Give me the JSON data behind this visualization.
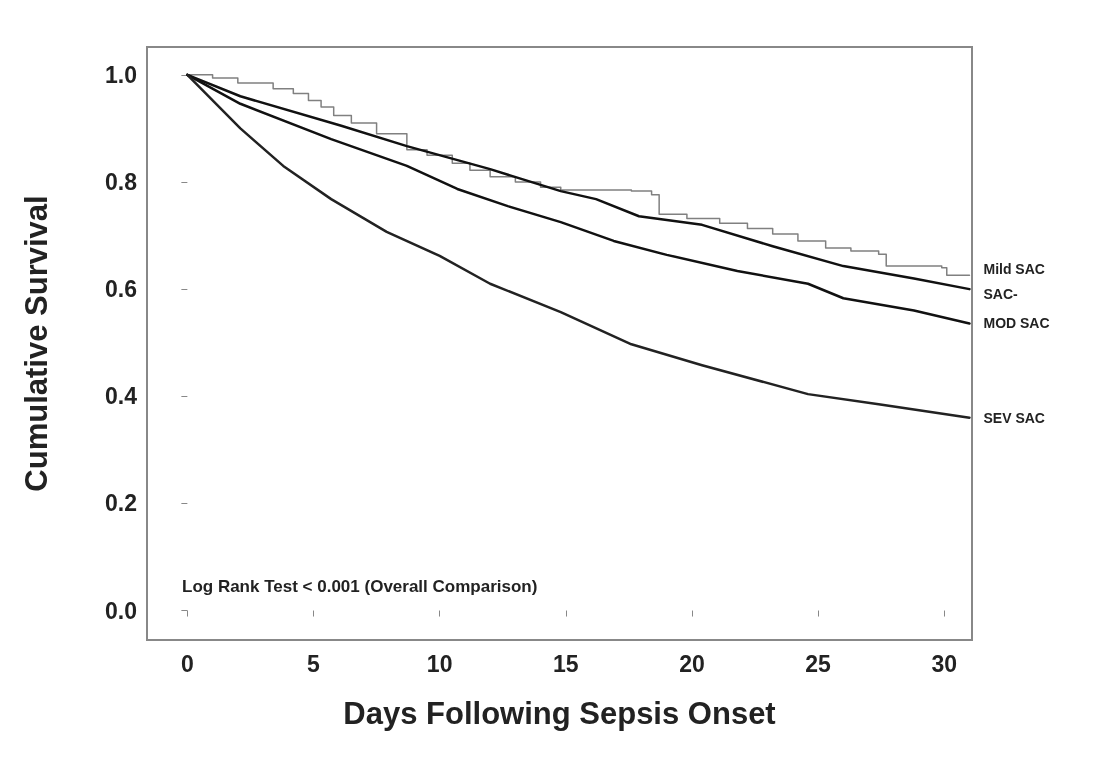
{
  "chart_data": {
    "type": "line",
    "xlabel": "Days Following Sepsis Onset",
    "ylabel": "Cumulative Survival",
    "xlim": [
      -1.6,
      31.1
    ],
    "ylim": [
      -0.055,
      1.052
    ],
    "xticks": [
      0,
      5,
      10,
      15,
      20,
      25,
      30
    ],
    "yticks": [
      {
        "value": 0,
        "label": "0.0"
      },
      0.2,
      0.4,
      0.6,
      0.8,
      {
        "value": 1,
        "label": "1.0"
      }
    ],
    "grid": false,
    "legend": false,
    "marker": "none",
    "line_style": "solid",
    "annotations": [
      "Log Rank Test < 0.001 (Overall Comparison)"
    ],
    "series": [
      {
        "name": "Mild SAC",
        "type": "step",
        "color": "#808080",
        "x": [
          0,
          1,
          2,
          3.4,
          4.2,
          4.8,
          5.3,
          5.8,
          6.5,
          7.5,
          8.7,
          9.5,
          10.5,
          11.2,
          12,
          13,
          14,
          14.8,
          17.6,
          18.4,
          18.7,
          19.8,
          21.1,
          22.2,
          23.2,
          24.2,
          25.3,
          26.3,
          27.4,
          27.7,
          29.9,
          30.1,
          31
        ],
        "values": [
          1,
          0.994,
          0.985,
          0.974,
          0.965,
          0.952,
          0.94,
          0.924,
          0.91,
          0.89,
          0.86,
          0.85,
          0.835,
          0.822,
          0.81,
          0.8,
          0.79,
          0.785,
          0.783,
          0.776,
          0.74,
          0.732,
          0.723,
          0.713,
          0.703,
          0.69,
          0.677,
          0.671,
          0.665,
          0.643,
          0.64,
          0.626,
          0.626
        ]
      },
      {
        "name": "SAC-",
        "color": "#111111",
        "x": [
          0,
          2.1,
          6.1,
          8.7,
          12,
          14.8,
          16.2,
          17.9,
          20.4,
          23.2,
          26,
          28.8,
          31
        ],
        "values": [
          1,
          0.96,
          0.905,
          0.867,
          0.824,
          0.783,
          0.768,
          0.736,
          0.72,
          0.68,
          0.643,
          0.62,
          0.6
        ]
      },
      {
        "name": "MOD SAC",
        "color": "#111111",
        "x": [
          0,
          2.1,
          5.7,
          8.7,
          10.7,
          12.7,
          14.8,
          16.9,
          19,
          21.8,
          24.6,
          26,
          28.8,
          31
        ],
        "values": [
          1,
          0.946,
          0.88,
          0.83,
          0.787,
          0.755,
          0.725,
          0.69,
          0.664,
          0.634,
          0.61,
          0.583,
          0.56,
          0.536
        ]
      },
      {
        "name": "SEV SAC",
        "color": "#222222",
        "x": [
          0,
          2.1,
          3.8,
          5.7,
          7.9,
          10,
          12,
          14.8,
          17.6,
          20.4,
          24.6,
          27.4,
          31
        ],
        "values": [
          1,
          0.9,
          0.83,
          0.768,
          0.707,
          0.662,
          0.61,
          0.557,
          0.497,
          0.458,
          0.404,
          0.385,
          0.36
        ]
      }
    ]
  }
}
